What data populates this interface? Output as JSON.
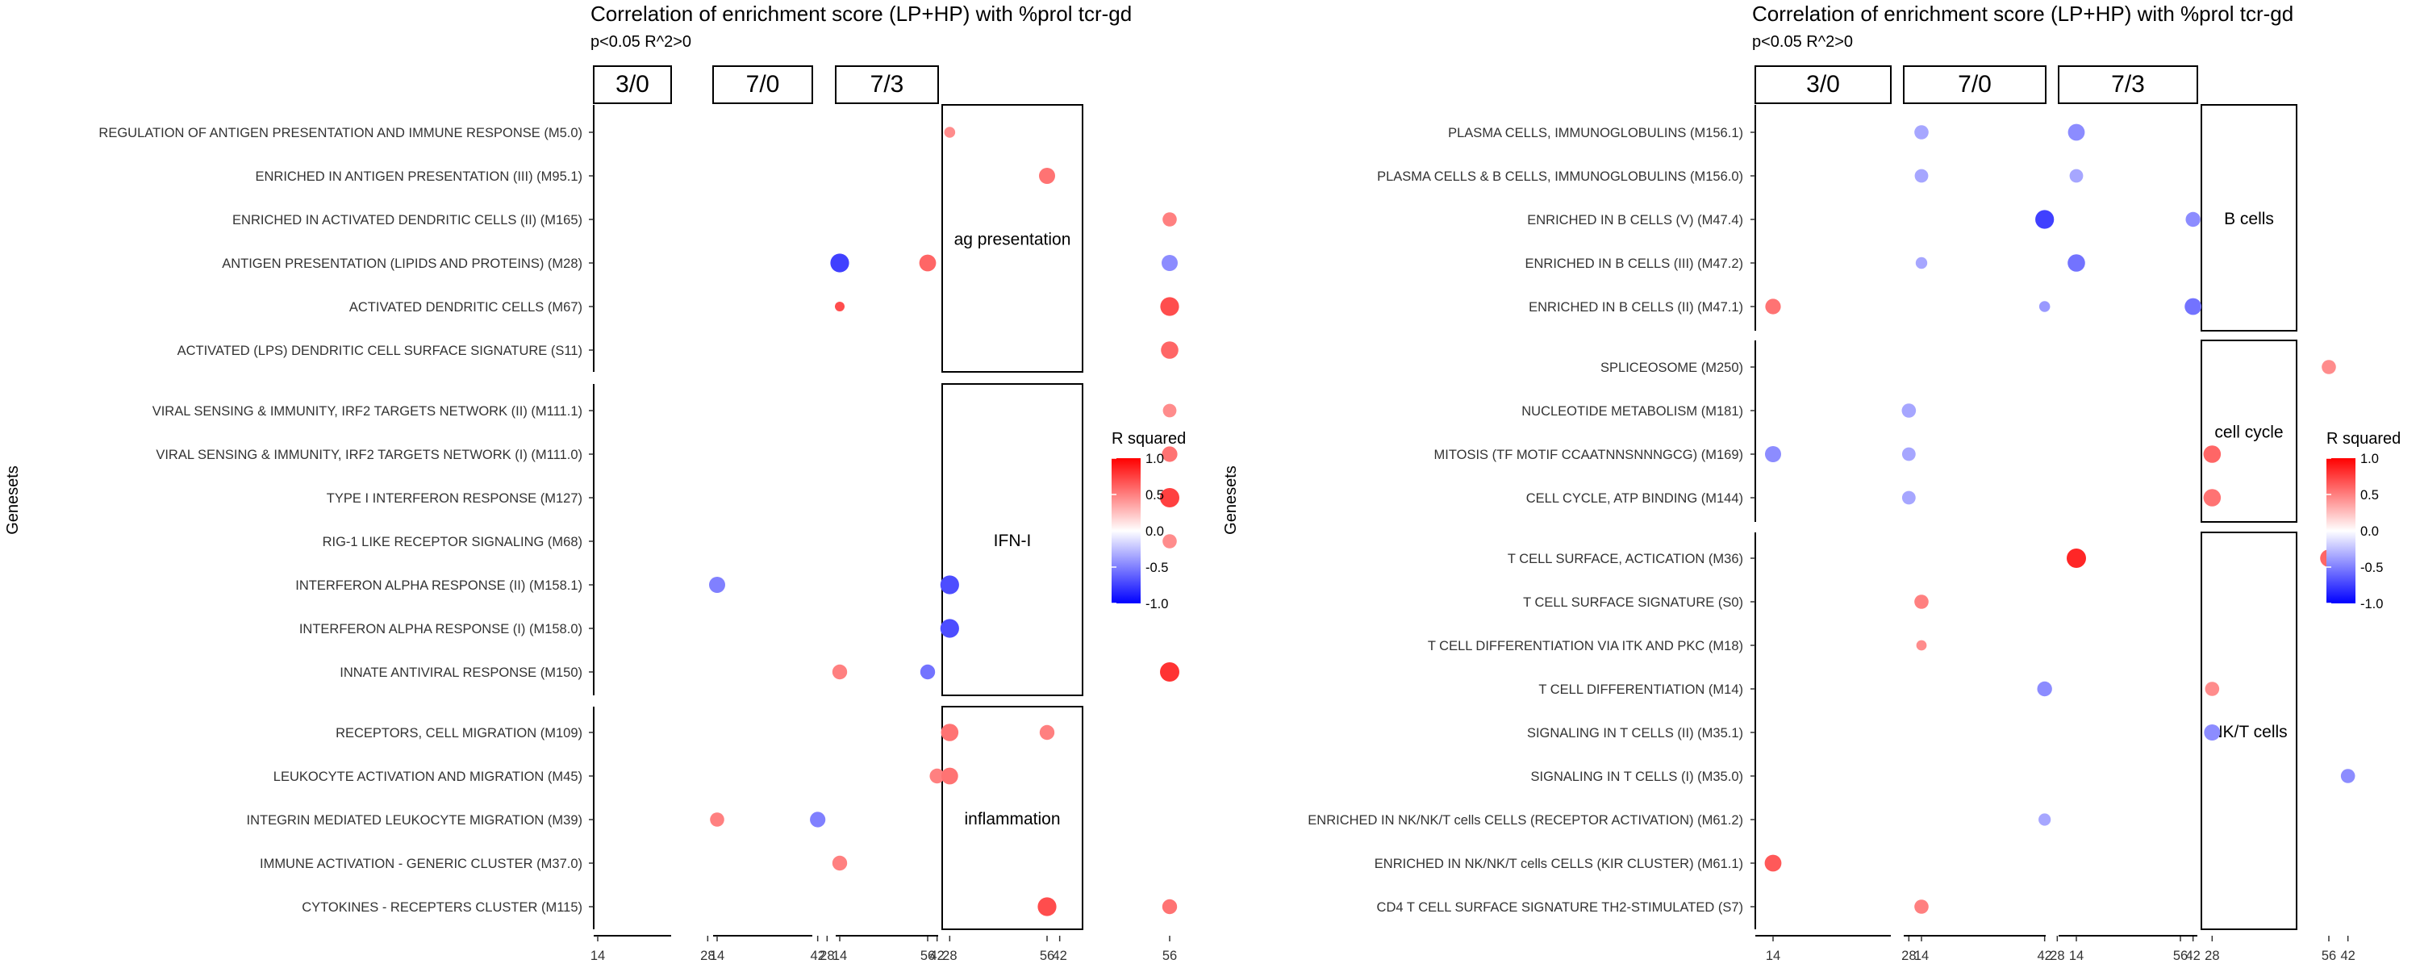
{
  "chart_data": [
    {
      "type": "scatter",
      "title": "Correlation of enrichment score (LP+HP) with %prol tcr-gd",
      "subtitle": "p<0.05 R^2>0",
      "ylabel": "Genesets",
      "facet_columns": [
        "3/0",
        "7/0",
        "7/3"
      ],
      "x_ticks": [
        14,
        28,
        42,
        56
      ],
      "legend": {
        "title": "R squared",
        "ticks": [
          "1.0",
          "0.5",
          "0.0",
          "-0.5",
          "-1.0"
        ],
        "range": [
          -1,
          1
        ],
        "colors": {
          "low": "#0000ff",
          "mid": "#ffffff",
          "high": "#ff0000"
        },
        "placement": "right"
      },
      "groups": [
        {
          "name": "ag presentation",
          "rows": [
            {
              "label": "REGULATION OF ANTIGEN PRESENTATION AND IMMUNE RESPONSE (M5.0)",
              "points": [
                {
                  "facet": 2,
                  "x": 28,
                  "r2": 0.45,
                  "size": 0.35
                }
              ]
            },
            {
              "label": "ENRICHED IN ANTIGEN PRESENTATION (III) (M95.1)",
              "points": [
                {
                  "facet": 1,
                  "x": 56,
                  "r2": 0.55,
                  "size": 0.75
                }
              ]
            },
            {
              "label": "ENRICHED IN ACTIVATED DENDRITIC CELLS (II) (M165)",
              "points": [
                {
                  "facet": 2,
                  "x": 56,
                  "r2": 0.5,
                  "size": 0.6
                }
              ]
            },
            {
              "label": "ANTIGEN PRESENTATION (LIPIDS AND PROTEINS) (M28)",
              "points": [
                {
                  "facet": 0,
                  "x": 56,
                  "r2": 0.6,
                  "size": 0.8
                },
                {
                  "facet": 2,
                  "x": 14,
                  "r2": -0.75,
                  "size": 0.95
                },
                {
                  "facet": 2,
                  "x": 56,
                  "r2": -0.45,
                  "size": 0.75
                }
              ]
            },
            {
              "label": "ACTIVATED DENDRITIC CELLS (M67)",
              "points": [
                {
                  "facet": 2,
                  "x": 14,
                  "r2": 0.7,
                  "size": 0.25
                },
                {
                  "facet": 2,
                  "x": 56,
                  "r2": 0.7,
                  "size": 0.95
                }
              ]
            },
            {
              "label": "ACTIVATED (LPS) DENDRITIC CELL SURFACE SIGNATURE (S11)",
              "points": [
                {
                  "facet": 2,
                  "x": 56,
                  "r2": 0.6,
                  "size": 0.85
                }
              ]
            }
          ]
        },
        {
          "name": "IFN-I",
          "rows": [
            {
              "label": "VIRAL SENSING & IMMUNITY,  IRF2 TARGETS NETWORK (II) (M111.1)",
              "points": [
                {
                  "facet": 2,
                  "x": 56,
                  "r2": 0.45,
                  "size": 0.55
                }
              ]
            },
            {
              "label": "VIRAL SENSING & IMMUNITY,  IRF2 TARGETS NETWORK (I) (M111.0)",
              "points": [
                {
                  "facet": 2,
                  "x": 56,
                  "r2": 0.55,
                  "size": 0.7
                }
              ]
            },
            {
              "label": "TYPE I INTERFERON RESPONSE (M127)",
              "points": [
                {
                  "facet": 2,
                  "x": 56,
                  "r2": 0.75,
                  "size": 1.0
                }
              ]
            },
            {
              "label": "RIG-1 LIKE RECEPTOR SIGNALING (M68)",
              "points": [
                {
                  "facet": 2,
                  "x": 56,
                  "r2": 0.45,
                  "size": 0.6
                }
              ]
            },
            {
              "label": "INTERFERON ALPHA RESPONSE (II) (M158.1)",
              "points": [
                {
                  "facet": 1,
                  "x": 14,
                  "r2": -0.5,
                  "size": 0.75
                },
                {
                  "facet": 2,
                  "x": 28,
                  "r2": -0.7,
                  "size": 0.95
                }
              ]
            },
            {
              "label": "INTERFERON ALPHA RESPONSE (I) (M158.0)",
              "points": [
                {
                  "facet": 2,
                  "x": 28,
                  "r2": -0.7,
                  "size": 0.95
                }
              ]
            },
            {
              "label": "INNATE ANTIVIRAL RESPONSE (M150)",
              "points": [
                {
                  "facet": 0,
                  "x": 56,
                  "r2": -0.55,
                  "size": 0.65
                },
                {
                  "facet": 2,
                  "x": 14,
                  "r2": 0.5,
                  "size": 0.65
                },
                {
                  "facet": 2,
                  "x": 56,
                  "r2": 0.8,
                  "size": 1.0
                }
              ]
            }
          ]
        },
        {
          "name": "inflammation",
          "rows": [
            {
              "label": "RECEPTORS, CELL MIGRATION (M109)",
              "points": [
                {
                  "facet": 1,
                  "x": 56,
                  "r2": 0.5,
                  "size": 0.65
                },
                {
                  "facet": 2,
                  "x": 28,
                  "r2": 0.55,
                  "size": 0.85
                }
              ]
            },
            {
              "label": "LEUKOCYTE ACTIVATION AND MIGRATION (M45)",
              "points": [
                {
                  "facet": 1,
                  "x": 42,
                  "r2": 0.5,
                  "size": 0.65
                },
                {
                  "facet": 2,
                  "x": 28,
                  "r2": 0.55,
                  "size": 0.8
                }
              ]
            },
            {
              "label": "INTEGRIN MEDIATED LEUKOCYTE MIGRATION (M39)",
              "points": [
                {
                  "facet": 0,
                  "x": 42,
                  "r2": -0.5,
                  "size": 0.7
                },
                {
                  "facet": 1,
                  "x": 14,
                  "r2": 0.5,
                  "size": 0.6
                }
              ]
            },
            {
              "label": "IMMUNE ACTIVATION - GENERIC CLUSTER (M37.0)",
              "points": [
                {
                  "facet": 2,
                  "x": 14,
                  "r2": 0.5,
                  "size": 0.65
                }
              ]
            },
            {
              "label": "CYTOKINES - RECEPTERS CLUSTER (M115)",
              "points": [
                {
                  "facet": 1,
                  "x": 56,
                  "r2": 0.7,
                  "size": 0.95
                },
                {
                  "facet": 2,
                  "x": 56,
                  "r2": 0.55,
                  "size": 0.65
                }
              ]
            }
          ]
        }
      ]
    },
    {
      "type": "scatter",
      "title": "Correlation of enrichment score (LP+HP) with %prol tcr-gd",
      "subtitle": "p<0.05 R^2>0",
      "ylabel": "Genesets",
      "facet_columns": [
        "3/0",
        "7/0",
        "7/3"
      ],
      "x_ticks": [
        14,
        28,
        42,
        56
      ],
      "legend": {
        "title": "R squared",
        "ticks": [
          "1.0",
          "0.5",
          "0.0",
          "-0.5",
          "-1.0"
        ],
        "range": [
          -1,
          1
        ],
        "colors": {
          "low": "#0000ff",
          "mid": "#ffffff",
          "high": "#ff0000"
        },
        "placement": "right"
      },
      "groups": [
        {
          "name": "B cells",
          "rows": [
            {
              "label": "PLASMA CELLS, IMMUNOGLOBULINS (M156.1)",
              "points": [
                {
                  "facet": 1,
                  "x": 14,
                  "r2": -0.35,
                  "size": 0.6
                },
                {
                  "facet": 2,
                  "x": 14,
                  "r2": -0.45,
                  "size": 0.8
                }
              ]
            },
            {
              "label": "PLASMA CELLS & B CELLS, IMMUNOGLOBULINS (M156.0)",
              "points": [
                {
                  "facet": 1,
                  "x": 14,
                  "r2": -0.35,
                  "size": 0.55
                },
                {
                  "facet": 2,
                  "x": 14,
                  "r2": -0.35,
                  "size": 0.55
                }
              ]
            },
            {
              "label": "ENRICHED IN B CELLS (V) (M47.4)",
              "points": [
                {
                  "facet": 0,
                  "x": 42,
                  "r2": -0.75,
                  "size": 0.95
                },
                {
                  "facet": 1,
                  "x": 42,
                  "r2": -0.45,
                  "size": 0.65
                }
              ]
            },
            {
              "label": "ENRICHED IN B CELLS (III) (M47.2)",
              "points": [
                {
                  "facet": 1,
                  "x": 14,
                  "r2": -0.35,
                  "size": 0.4
                },
                {
                  "facet": 2,
                  "x": 14,
                  "r2": -0.55,
                  "size": 0.85
                }
              ]
            },
            {
              "label": "ENRICHED IN B CELLS (II) (M47.1)",
              "points": [
                {
                  "facet": 0,
                  "x": 14,
                  "r2": 0.55,
                  "size": 0.7
                },
                {
                  "facet": 0,
                  "x": 42,
                  "r2": -0.4,
                  "size": 0.35
                },
                {
                  "facet": 1,
                  "x": 42,
                  "r2": -0.55,
                  "size": 0.8
                }
              ]
            }
          ]
        },
        {
          "name": "cell cycle",
          "rows": [
            {
              "label": "SPLICEOSOME (M250)",
              "points": [
                {
                  "facet": 1,
                  "x": 56,
                  "r2": 0.45,
                  "size": 0.6
                }
              ]
            },
            {
              "label": "NUCLEOTIDE METABOLISM (M181)",
              "points": [
                {
                  "facet": 0,
                  "x": 28,
                  "r2": -0.35,
                  "size": 0.6
                }
              ]
            },
            {
              "label": "MITOSIS (TF MOTIF CCAATNNSNNNGCG) (M169)",
              "points": [
                {
                  "facet": 0,
                  "x": 14,
                  "r2": -0.45,
                  "size": 0.75
                },
                {
                  "facet": 0,
                  "x": 28,
                  "r2": -0.35,
                  "size": 0.55
                },
                {
                  "facet": 2,
                  "x": 28,
                  "r2": 0.6,
                  "size": 0.85
                }
              ]
            },
            {
              "label": "CELL CYCLE, ATP BINDING (M144)",
              "points": [
                {
                  "facet": 0,
                  "x": 28,
                  "r2": -0.35,
                  "size": 0.55
                },
                {
                  "facet": 2,
                  "x": 28,
                  "r2": 0.55,
                  "size": 0.85
                },
                {
                  "facet": 2,
                  "x": 56,
                  "r2": 0.5,
                  "size": 0.5
                }
              ]
            }
          ]
        },
        {
          "name": "NK/T cells",
          "rows": [
            {
              "label": "T CELL SURFACE, ACTICATION (M36)",
              "points": [
                {
                  "facet": 1,
                  "x": 56,
                  "r2": 0.6,
                  "size": 0.85
                },
                {
                  "facet": 2,
                  "x": 14,
                  "r2": 0.85,
                  "size": 1.0
                }
              ]
            },
            {
              "label": "T CELL SURFACE SIGNATURE (S0)",
              "points": [
                {
                  "facet": 1,
                  "x": 14,
                  "r2": 0.5,
                  "size": 0.6
                }
              ]
            },
            {
              "label": "T CELL DIFFERENTIATION VIA ITK AND PKC (M18)",
              "points": [
                {
                  "facet": 1,
                  "x": 14,
                  "r2": 0.45,
                  "size": 0.3
                }
              ]
            },
            {
              "label": "T CELL DIFFERENTIATION (M14)",
              "points": [
                {
                  "facet": 0,
                  "x": 42,
                  "r2": -0.45,
                  "size": 0.65
                },
                {
                  "facet": 2,
                  "x": 28,
                  "r2": 0.45,
                  "size": 0.6
                }
              ]
            },
            {
              "label": "SIGNALING IN T CELLS (II) (M35.1)",
              "points": [
                {
                  "facet": 2,
                  "x": 28,
                  "r2": -0.45,
                  "size": 0.75
                }
              ]
            },
            {
              "label": "SIGNALING IN T CELLS (I) (M35.0)",
              "points": [
                {
                  "facet": 2,
                  "x": 42,
                  "r2": -0.45,
                  "size": 0.6
                }
              ]
            },
            {
              "label": "ENRICHED IN NK/NK/T cells CELLS (RECEPTOR ACTIVATION) (M61.2)",
              "points": [
                {
                  "facet": 0,
                  "x": 42,
                  "r2": -0.35,
                  "size": 0.45
                }
              ]
            },
            {
              "label": "ENRICHED IN NK/NK/T cells CELLS (KIR CLUSTER) (M61.1)",
              "points": [
                {
                  "facet": 0,
                  "x": 14,
                  "r2": 0.65,
                  "size": 0.8
                }
              ]
            },
            {
              "label": "CD4 T CELL SURFACE SIGNATURE TH2-STIMULATED (S7)",
              "points": [
                {
                  "facet": 1,
                  "x": 14,
                  "r2": 0.5,
                  "size": 0.6
                },
                {
                  "facet": 2,
                  "x": 56,
                  "r2": 0.55,
                  "size": 0.75
                }
              ]
            }
          ]
        }
      ]
    }
  ]
}
